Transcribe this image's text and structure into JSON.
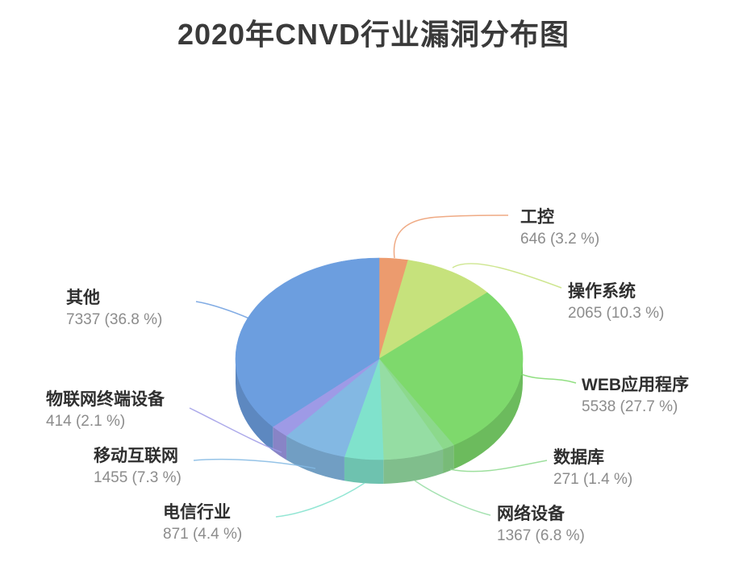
{
  "title": "2020年CNVD行业漏洞分布图",
  "chart_data": {
    "type": "pie",
    "style": "3d-pie",
    "title": "2020年CNVD行业漏洞分布图",
    "start_angle_deg": 0,
    "direction": "clockwise",
    "legend": "none",
    "label_format": "name + value (percent %)",
    "slices": [
      {
        "label": "工控",
        "value": 646,
        "percent": 3.2,
        "value_text": "646 (3.2 %)",
        "color": "#EC9B6E"
      },
      {
        "label": "操作系统",
        "value": 2065,
        "percent": 10.3,
        "value_text": "2065 (10.3 %)",
        "color": "#C6E27C"
      },
      {
        "label": "WEB应用程序",
        "value": 5538,
        "percent": 27.7,
        "value_text": "5538 (27.7 %)",
        "color": "#7ED96C"
      },
      {
        "label": "数据库",
        "value": 271,
        "percent": 1.4,
        "value_text": "271 (1.4 %)",
        "color": "#8CD98C"
      },
      {
        "label": "网络设备",
        "value": 1367,
        "percent": 6.8,
        "value_text": "1367 (6.8 %)",
        "color": "#95DDA3"
      },
      {
        "label": "电信行业",
        "value": 871,
        "percent": 4.4,
        "value_text": "871 (4.4 %)",
        "color": "#80E2CC"
      },
      {
        "label": "移动互联网",
        "value": 1455,
        "percent": 7.3,
        "value_text": "1455 (7.3 %)",
        "color": "#83B8E3"
      },
      {
        "label": "物联网终端设备",
        "value": 414,
        "percent": 2.1,
        "value_text": "414 (2.1 %)",
        "color": "#9E9AE6"
      },
      {
        "label": "其他",
        "value": 7337,
        "percent": 36.8,
        "value_text": "7337 (36.8 %)",
        "color": "#6C9EDF"
      }
    ],
    "text_colors": {
      "name": "#2f2f2f",
      "value": "#8c8c8c",
      "title": "#3a3a3a"
    }
  }
}
